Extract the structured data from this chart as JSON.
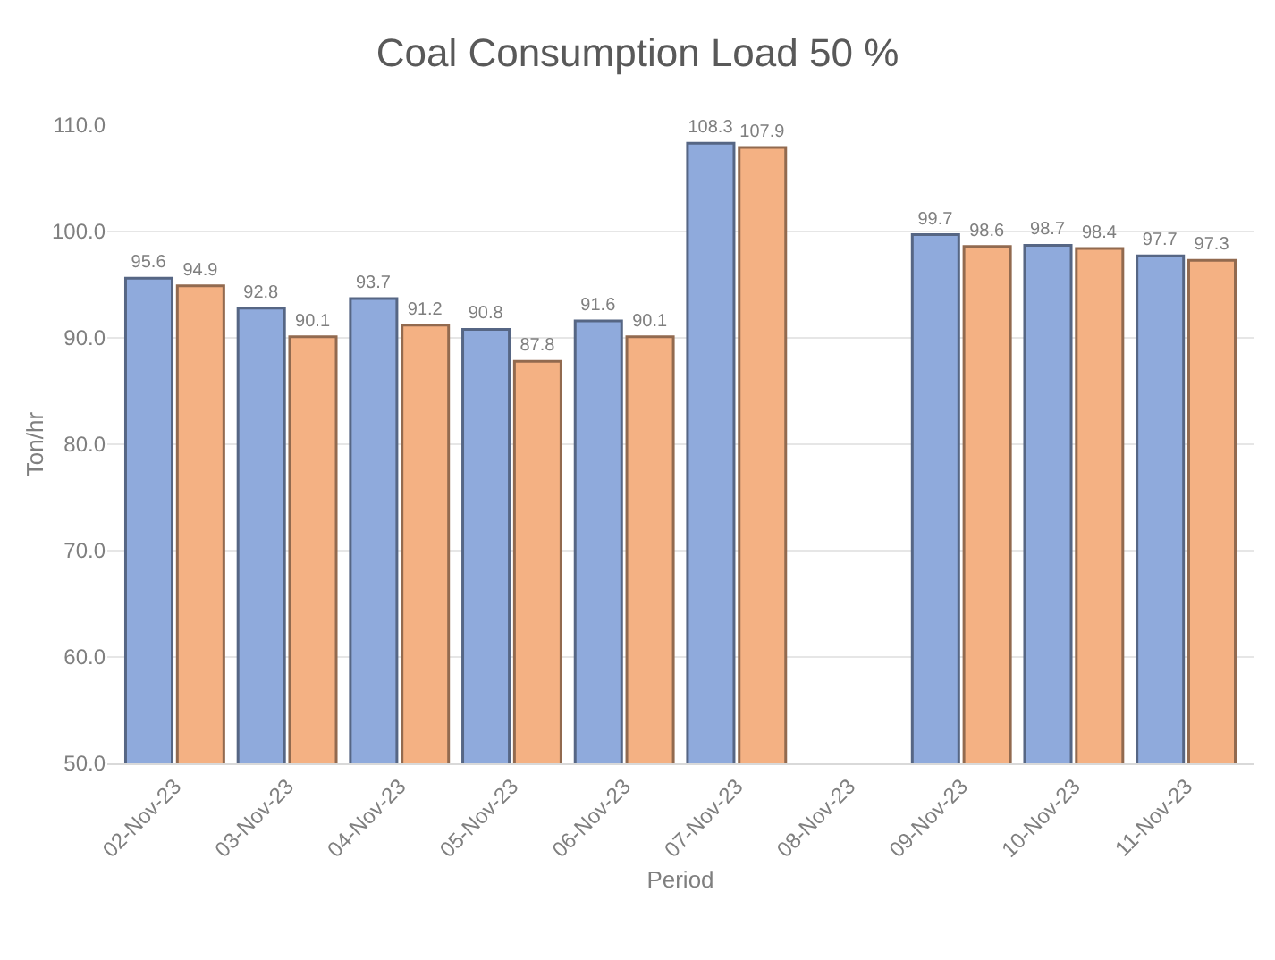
{
  "chart_data": {
    "type": "bar",
    "title": "Coal Consumption Load 50 %",
    "xlabel": "Period",
    "ylabel": "Ton/hr",
    "categories": [
      "02-Nov-23",
      "03-Nov-23",
      "04-Nov-23",
      "05-Nov-23",
      "06-Nov-23",
      "07-Nov-23",
      "08-Nov-23",
      "09-Nov-23",
      "10-Nov-23",
      "11-Nov-23"
    ],
    "series": [
      {
        "color": "#8faadc",
        "values": [
          95.6,
          92.8,
          93.7,
          90.8,
          91.6,
          108.3,
          null,
          99.7,
          98.7,
          97.7
        ]
      },
      {
        "color": "#f4b183",
        "values": [
          94.9,
          90.1,
          91.2,
          87.8,
          90.1,
          107.9,
          null,
          98.6,
          98.4,
          97.3
        ]
      }
    ],
    "ylim": [
      50,
      110
    ],
    "yticks": [
      {
        "value": 50,
        "label": "50.0"
      },
      {
        "value": 60,
        "label": "60.0"
      },
      {
        "value": 70,
        "label": "70.0"
      },
      {
        "value": 80,
        "label": "80.0"
      },
      {
        "value": 90,
        "label": "90.0"
      },
      {
        "value": 100,
        "label": "100.0"
      },
      {
        "value": 110,
        "label": "110.0"
      }
    ],
    "grid": "y",
    "data_labels": true
  }
}
